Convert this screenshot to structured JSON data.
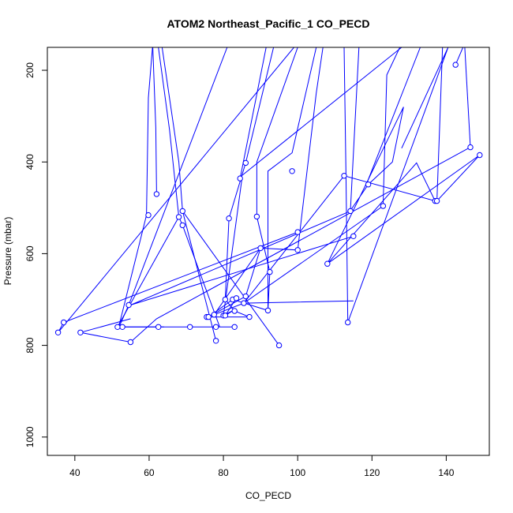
{
  "chart_data": {
    "type": "line",
    "title": "ATOM2 Northeast_Pacific_1 CO_PECD",
    "xlabel": "CO_PECD",
    "ylabel": "Pressure (mbar)",
    "xlim": [
      32.6,
      151.6
    ],
    "ylim": [
      1040,
      150
    ],
    "y_reversed": true,
    "x_ticks": [
      40,
      60,
      80,
      100,
      120,
      140
    ],
    "y_ticks": [
      200,
      400,
      600,
      800,
      1000
    ],
    "grid": false,
    "series_color": "#0000ff",
    "series": [
      {
        "x": [
          60.9,
          59.8,
          59.3
        ],
        "y": [
          150,
          260,
          516
        ]
      },
      {
        "x": [
          61.0,
          61.8,
          62.0
        ],
        "y": [
          150,
          325,
          470
        ]
      },
      {
        "x": [
          62.5,
          65.5,
          68.0,
          69.0,
          79.0
        ],
        "y": [
          150,
          330,
          520,
          538,
          760
        ]
      },
      {
        "x": [
          63.5,
          68.0,
          69.0,
          78.0
        ],
        "y": [
          150,
          400,
          507,
          790
        ]
      },
      {
        "x": [
          68.0,
          51.5,
          62.5,
          71.0,
          78.0,
          83.0
        ],
        "y": [
          520,
          760,
          760,
          760,
          760,
          760
        ]
      },
      {
        "x": [
          59.3,
          51.8,
          52.8,
          55.0,
          64.0
        ],
        "y": [
          516,
          760,
          760,
          760,
          760
        ]
      },
      {
        "x": [
          81.0,
          54.5,
          52.0
        ],
        "y": [
          150,
          712,
          758
        ]
      },
      {
        "x": [
          69.0,
          95.0
        ],
        "y": [
          507,
          800
        ]
      },
      {
        "x": [
          99.0,
          35.5,
          37.0,
          100.0
        ],
        "y": [
          150,
          772,
          750,
          553
        ]
      },
      {
        "x": [
          55.0,
          41.5,
          55.0,
          62.0,
          146.0
        ],
        "y": [
          742,
          772,
          793,
          742,
          370
        ]
      },
      {
        "x": [
          114.2,
          55.0,
          115.0
        ],
        "y": [
          507,
          712,
          562
        ]
      },
      {
        "x": [
          106.8,
          105.0,
          100.0,
          90.0,
          77.5,
          85.5,
          115.0
        ],
        "y": [
          150,
          250,
          592,
          588,
          733,
          708,
          703
        ]
      },
      {
        "x": [
          93.5,
          86.0,
          81.5,
          80.5,
          83.0,
          87.0,
          75.5
        ],
        "y": [
          150,
          402,
          523,
          700,
          725,
          738,
          738
        ]
      },
      {
        "x": [
          105.0,
          98.5,
          92.0,
          92.0,
          82.5,
          76.5,
          76.0,
          86.0,
          90.0
        ],
        "y": [
          150,
          380,
          420,
          724,
          700,
          735,
          738,
          693,
          588
        ]
      },
      {
        "x": [
          100.0,
          89.0,
          89.0,
          92.5,
          92.0
        ],
        "y": [
          150,
          400,
          519,
          640,
          724
        ]
      },
      {
        "x": [
          91.5,
          84.5,
          85.0,
          80.0,
          83.0,
          80.5,
          83.5
        ],
        "y": [
          150,
          436,
          436,
          735,
          722,
          735,
          697
        ]
      },
      {
        "x": [
          116.5,
          114.2,
          119.0,
          125.5,
          128.5,
          108.0
        ],
        "y": [
          150,
          506,
          449,
          400,
          280,
          622
        ]
      },
      {
        "x": [
          112.5,
          113.0,
          113.5,
          140.5,
          128.0
        ],
        "y": [
          150,
          430,
          750,
          150,
          370
        ]
      },
      {
        "x": [
          127.5,
          124.0,
          123.0,
          85.5,
          112.5,
          137.0,
          132.0,
          108.0,
          149.0,
          137.5,
          139.0
        ],
        "y": [
          150,
          210,
          496,
          708,
          430,
          485,
          402,
          622,
          385,
          485,
          150
        ]
      },
      {
        "x": [
          144.5,
          142.5
        ],
        "y": [
          150,
          188
        ]
      },
      {
        "x": [
          145.0,
          146.5
        ],
        "y": [
          150,
          368
        ]
      },
      {
        "x": [
          133.0,
          118.5
        ],
        "y": [
          150,
          449
        ]
      },
      {
        "x": [
          128.0,
          84.0
        ],
        "y": [
          150,
          436
        ]
      }
    ],
    "series_explicit_points": [
      [
        59.8,
        516
      ],
      [
        62.0,
        470
      ],
      [
        68.0,
        520
      ],
      [
        69.0,
        507
      ],
      [
        69.0,
        538
      ],
      [
        51.5,
        760
      ],
      [
        52.8,
        760
      ],
      [
        62.5,
        760
      ],
      [
        71.0,
        760
      ],
      [
        78.0,
        760
      ],
      [
        83.0,
        760
      ],
      [
        54.5,
        712
      ],
      [
        35.5,
        772
      ],
      [
        37.0,
        750
      ],
      [
        41.5,
        772
      ],
      [
        55.0,
        793
      ],
      [
        95.0,
        800
      ],
      [
        78.0,
        790
      ],
      [
        100.0,
        553
      ],
      [
        115.0,
        562
      ],
      [
        114.2,
        507
      ],
      [
        100.0,
        592
      ],
      [
        90.0,
        588
      ],
      [
        77.5,
        733
      ],
      [
        85.5,
        708
      ],
      [
        86.0,
        402
      ],
      [
        81.5,
        523
      ],
      [
        80.5,
        700
      ],
      [
        83.0,
        725
      ],
      [
        87.0,
        738
      ],
      [
        75.5,
        738
      ],
      [
        76.0,
        738
      ],
      [
        98.5,
        420
      ],
      [
        92.0,
        724
      ],
      [
        82.5,
        700
      ],
      [
        86.0,
        693
      ],
      [
        89.0,
        519
      ],
      [
        92.5,
        640
      ],
      [
        84.5,
        436
      ],
      [
        80.0,
        735
      ],
      [
        80.5,
        735
      ],
      [
        83.5,
        697
      ],
      [
        119.0,
        449
      ],
      [
        108.0,
        622
      ],
      [
        113.5,
        750
      ],
      [
        123.0,
        496
      ],
      [
        112.5,
        430
      ],
      [
        137.0,
        485
      ],
      [
        137.5,
        485
      ],
      [
        149.0,
        385
      ],
      [
        146.5,
        368
      ],
      [
        142.5,
        188
      ]
    ]
  }
}
